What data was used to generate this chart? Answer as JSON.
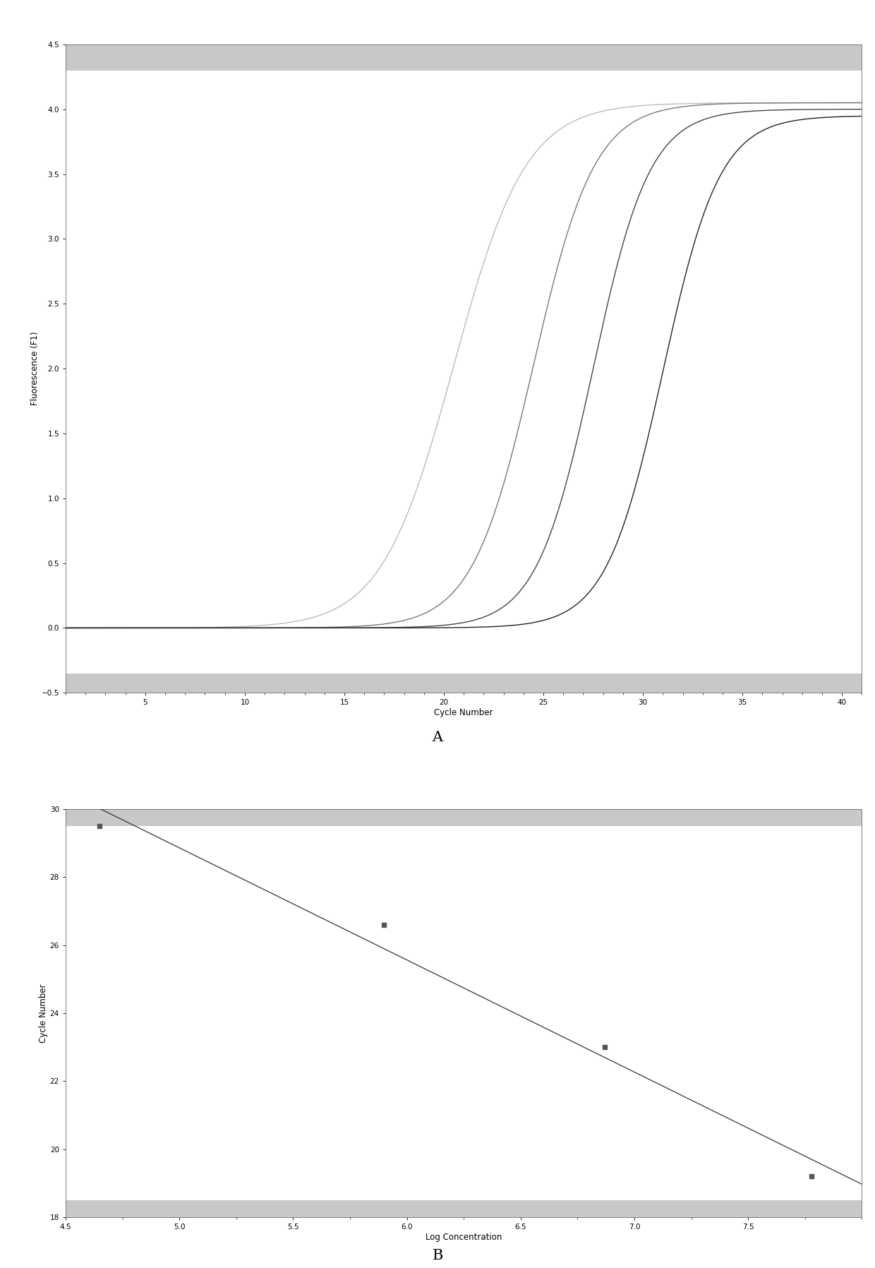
{
  "panel_A": {
    "ylabel": "Fluorescence (F1)",
    "xlabel": "Cycle Number",
    "ylim": [
      -0.5,
      4.5
    ],
    "xlim": [
      1,
      41
    ],
    "yticks": [
      -0.5,
      0,
      0.5,
      1,
      1.5,
      2,
      2.5,
      3,
      3.5,
      4,
      4.5
    ],
    "xticks": [
      5,
      10,
      15,
      20,
      25,
      30,
      35,
      40
    ],
    "curves": [
      {
        "color": "#bbbbbb",
        "midpoint": 20.5,
        "k": 0.55,
        "ymax": 4.05
      },
      {
        "color": "#777777",
        "midpoint": 24.5,
        "k": 0.65,
        "ymax": 4.05
      },
      {
        "color": "#444444",
        "midpoint": 27.5,
        "k": 0.7,
        "ymax": 4.0
      },
      {
        "color": "#222222",
        "midpoint": 31.0,
        "k": 0.7,
        "ymax": 3.95
      }
    ],
    "plot_bg": "#ffffff",
    "strip_color": "#c8c8c8",
    "label_color": "#000000"
  },
  "panel_B": {
    "ylabel": "Cycle Number",
    "xlabel": "Log Concentration",
    "ylim": [
      18,
      30
    ],
    "xlim": [
      4.5,
      8.0
    ],
    "yticks": [
      18,
      20,
      22,
      24,
      26,
      28,
      30
    ],
    "xticks": [
      4.5,
      5.0,
      5.5,
      6.0,
      6.5,
      7.0,
      7.5
    ],
    "points_x": [
      4.65,
      5.9,
      6.87,
      7.78
    ],
    "points_y": [
      29.5,
      26.6,
      23.0,
      19.2
    ],
    "line_color": "#333333",
    "point_color": "#555555",
    "plot_bg": "#ffffff",
    "strip_color": "#c8c8c8",
    "label_color": "#000000"
  },
  "label_A": "A",
  "label_B": "B",
  "fig_bg": "#ffffff"
}
